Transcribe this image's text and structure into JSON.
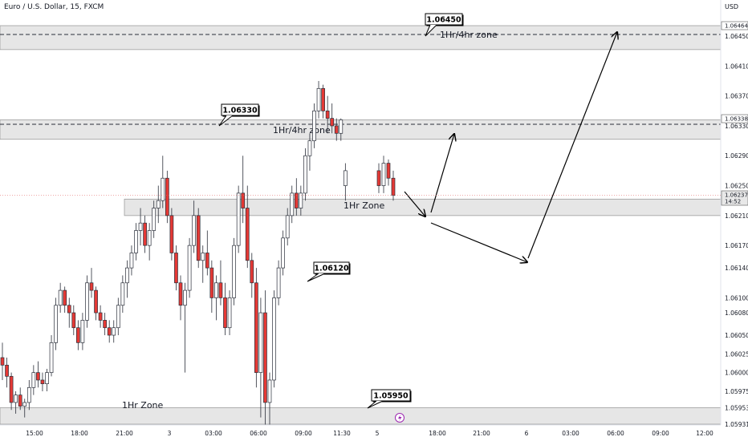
{
  "header": {
    "symbol": "Euro / U.S. Dollar, 15, FXCM",
    "currency": "USD"
  },
  "chart_data": {
    "type": "candlestick",
    "instrument": "Euro / U.S. Dollar",
    "interval": "15",
    "source": "FXCM",
    "y_axis": {
      "ticks": [
        "1.06450",
        "1.06410",
        "1.06370",
        "1.06330",
        "1.06290",
        "1.06250",
        "1.06210",
        "1.06170",
        "1.06140",
        "1.06100",
        "1.06080",
        "1.06050",
        "1.06025",
        "1.06000",
        "1.05975",
        "1.05953",
        "1.05931"
      ],
      "range": [
        1.0591,
        1.065
      ]
    },
    "x_axis": {
      "ticks": [
        "15:00",
        "18:00",
        "21:00",
        "3",
        "03:00",
        "06:00",
        "09:00",
        "11:30",
        "5",
        "18:00",
        "21:00",
        "6",
        "03:00",
        "06:00",
        "09:00",
        "12:00"
      ]
    },
    "price_tags": [
      {
        "value": "1.06464",
        "color": "#ffffff",
        "text_color": "#131722"
      },
      {
        "value": "1.06338",
        "color": "#ffffff",
        "text_color": "#131722"
      },
      {
        "value": "1.06237",
        "value2": "14:52",
        "color": "#e8e8e8",
        "text_color": "#131722"
      }
    ],
    "zones": [
      {
        "label": "1Hr/4hr zone",
        "top": 1.06464,
        "bottom": 1.06432,
        "line": 1.0645
      },
      {
        "label": "1Hr/4hr zone",
        "top": 1.06338,
        "bottom": 1.06312,
        "line": 1.0633
      },
      {
        "label": "1Hr Zone",
        "top": 1.06232,
        "bottom": 1.0621
      },
      {
        "label": "1Hr Zone",
        "top": 1.05953,
        "bottom": 1.05931
      }
    ],
    "callouts": [
      "1.06450",
      "1.06330",
      "1.06120",
      "1.05950"
    ],
    "projection_path": [
      [
        "5",
        1.06242
      ],
      [
        "5",
        1.06218
      ],
      [
        "18:00",
        1.06318
      ],
      [
        "18:00",
        1.06204
      ],
      [
        "03:00",
        1.06135
      ],
      [
        "06:00",
        1.06445
      ]
    ],
    "candles": [
      [
        1.0602,
        1.0604,
        1.0599,
        1.0601
      ],
      [
        1.0601,
        1.0602,
        1.0598,
        1.05995
      ],
      [
        1.05995,
        1.06,
        1.0595,
        1.0596
      ],
      [
        1.0596,
        1.05975,
        1.05945,
        1.0597
      ],
      [
        1.0597,
        1.0598,
        1.0595,
        1.05955
      ],
      [
        1.05955,
        1.05965,
        1.0594,
        1.0596
      ],
      [
        1.0596,
        1.0599,
        1.0595,
        1.0598
      ],
      [
        1.0598,
        1.0601,
        1.0597,
        1.06
      ],
      [
        1.06,
        1.06015,
        1.0598,
        1.0599
      ],
      [
        1.0599,
        1.06,
        1.05975,
        1.05985
      ],
      [
        1.05985,
        1.06005,
        1.05975,
        1.06
      ],
      [
        1.06,
        1.0605,
        1.05995,
        1.0604
      ],
      [
        1.0604,
        1.061,
        1.0603,
        1.0609
      ],
      [
        1.0609,
        1.0612,
        1.0608,
        1.0611
      ],
      [
        1.0611,
        1.06115,
        1.0608,
        1.0609
      ],
      [
        1.0609,
        1.061,
        1.0606,
        1.0608
      ],
      [
        1.0608,
        1.0609,
        1.0605,
        1.0606
      ],
      [
        1.0606,
        1.0607,
        1.0603,
        1.0604
      ],
      [
        1.0604,
        1.0608,
        1.0603,
        1.0607
      ],
      [
        1.0607,
        1.0613,
        1.0606,
        1.0612
      ],
      [
        1.0612,
        1.0614,
        1.061,
        1.0611
      ],
      [
        1.0611,
        1.06115,
        1.0607,
        1.0608
      ],
      [
        1.0608,
        1.0609,
        1.0606,
        1.0607
      ],
      [
        1.0607,
        1.0608,
        1.0605,
        1.0606
      ],
      [
        1.0606,
        1.0607,
        1.0604,
        1.0605
      ],
      [
        1.0605,
        1.0607,
        1.0604,
        1.0606
      ],
      [
        1.0606,
        1.061,
        1.0605,
        1.0609
      ],
      [
        1.0609,
        1.0613,
        1.0608,
        1.0612
      ],
      [
        1.0612,
        1.0615,
        1.061,
        1.0614
      ],
      [
        1.0614,
        1.0617,
        1.0613,
        1.0616
      ],
      [
        1.0616,
        1.062,
        1.0615,
        1.0619
      ],
      [
        1.0619,
        1.0622,
        1.0617,
        1.062
      ],
      [
        1.062,
        1.0621,
        1.0616,
        1.0617
      ],
      [
        1.0617,
        1.062,
        1.0615,
        1.0619
      ],
      [
        1.0619,
        1.0623,
        1.0618,
        1.0622
      ],
      [
        1.0622,
        1.0625,
        1.062,
        1.0623
      ],
      [
        1.0623,
        1.0629,
        1.0622,
        1.0626
      ],
      [
        1.0626,
        1.0627,
        1.062,
        1.0621
      ],
      [
        1.0621,
        1.0622,
        1.0615,
        1.0616
      ],
      [
        1.0616,
        1.0617,
        1.0611,
        1.0612
      ],
      [
        1.0612,
        1.0613,
        1.0607,
        1.0609
      ],
      [
        1.0609,
        1.0612,
        1.06,
        1.0611
      ],
      [
        1.0611,
        1.0618,
        1.061,
        1.0617
      ],
      [
        1.0617,
        1.0623,
        1.0616,
        1.0621
      ],
      [
        1.0621,
        1.0622,
        1.0614,
        1.0615
      ],
      [
        1.0615,
        1.0617,
        1.0612,
        1.0616
      ],
      [
        1.0616,
        1.0619,
        1.0613,
        1.0614
      ],
      [
        1.0614,
        1.0615,
        1.0608,
        1.061
      ],
      [
        1.061,
        1.0613,
        1.0607,
        1.0612
      ],
      [
        1.0612,
        1.0615,
        1.0609,
        1.061
      ],
      [
        1.061,
        1.0612,
        1.0605,
        1.0606
      ],
      [
        1.0606,
        1.0611,
        1.0605,
        1.061
      ],
      [
        1.061,
        1.0618,
        1.0609,
        1.0617
      ],
      [
        1.0617,
        1.0625,
        1.0616,
        1.0624
      ],
      [
        1.0624,
        1.0629,
        1.062,
        1.0622
      ],
      [
        1.0622,
        1.0625,
        1.0614,
        1.0615
      ],
      [
        1.0615,
        1.0616,
        1.061,
        1.0612
      ],
      [
        1.0612,
        1.0614,
        1.0598,
        1.06
      ],
      [
        1.06,
        1.061,
        1.0594,
        1.0608
      ],
      [
        1.0608,
        1.0611,
        1.0593,
        1.0596
      ],
      [
        1.0596,
        1.06,
        1.0593,
        1.0599
      ],
      [
        1.0599,
        1.0611,
        1.0598,
        1.061
      ],
      [
        1.061,
        1.0615,
        1.0609,
        1.0614
      ],
      [
        1.0614,
        1.0619,
        1.0613,
        1.0618
      ],
      [
        1.0618,
        1.0622,
        1.0617,
        1.0621
      ],
      [
        1.0621,
        1.0625,
        1.062,
        1.0624
      ],
      [
        1.0624,
        1.0626,
        1.0621,
        1.0622
      ],
      [
        1.0622,
        1.0625,
        1.0621,
        1.0624
      ],
      [
        1.0624,
        1.063,
        1.0623,
        1.0629
      ],
      [
        1.0629,
        1.0632,
        1.0627,
        1.0631
      ],
      [
        1.0631,
        1.0636,
        1.063,
        1.0635
      ],
      [
        1.0635,
        1.0639,
        1.0634,
        1.0638
      ],
      [
        1.0638,
        1.06385,
        1.0634,
        1.0635
      ],
      [
        1.0635,
        1.0637,
        1.0632,
        1.0634
      ],
      [
        1.0634,
        1.0636,
        1.0632,
        1.0633
      ],
      [
        1.0633,
        1.0634,
        1.0631,
        1.0632
      ],
      [
        1.0632,
        1.0634,
        1.0631,
        1.06338
      ],
      [
        1.0625,
        1.0628,
        1.0623,
        1.0627
      ],
      [
        1.0627,
        1.0628,
        1.0624,
        1.0625
      ],
      [
        1.0625,
        1.0629,
        1.0624,
        1.0628
      ],
      [
        1.0628,
        1.06285,
        1.0625,
        1.0626
      ],
      [
        1.0626,
        1.0627,
        1.0623,
        1.06237
      ]
    ]
  }
}
